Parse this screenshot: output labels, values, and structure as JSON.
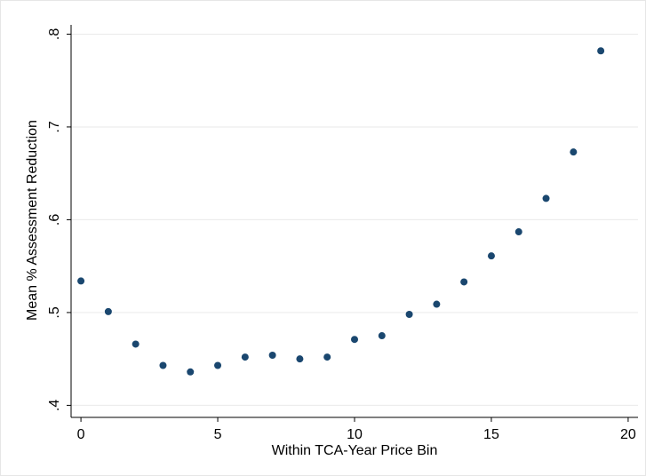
{
  "chart_data": {
    "type": "scatter",
    "x_label": "Within TCA-Year Price Bin",
    "y_label": "Mean % Assessment Reduction",
    "x": [
      0,
      1,
      2,
      3,
      4,
      5,
      6,
      7,
      8,
      9,
      10,
      11,
      12,
      13,
      14,
      15,
      16,
      17,
      18,
      19
    ],
    "values": [
      0.534,
      0.501,
      0.466,
      0.443,
      0.436,
      0.443,
      0.452,
      0.454,
      0.45,
      0.452,
      0.471,
      0.475,
      0.498,
      0.509,
      0.533,
      0.561,
      0.587,
      0.623,
      0.673,
      0.782
    ],
    "color": "#1a476f",
    "xlim": [
      -0.36,
      20.36
    ],
    "xticks": [
      0,
      5,
      10,
      15,
      20
    ],
    "ylim": [
      0.387,
      0.81
    ],
    "yticks": [
      {
        "value": 0.4,
        "label": ".4"
      },
      {
        "value": 0.5,
        "label": ".5"
      },
      {
        "value": 0.6,
        "label": ".6"
      },
      {
        "value": 0.7,
        "label": ".7"
      },
      {
        "value": 0.8,
        "label": ".8"
      }
    ],
    "grid": true
  }
}
